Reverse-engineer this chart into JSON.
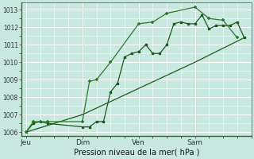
{
  "background_color": "#c8e8e0",
  "grid_color": "#ffffff",
  "line_color_dark": "#1a5c1a",
  "line_color_med": "#2a7a2a",
  "xlabel": "Pression niveau de la mer( hPa )",
  "ylim": [
    1005.8,
    1013.4
  ],
  "yticks": [
    1006,
    1007,
    1008,
    1009,
    1010,
    1011,
    1012,
    1013
  ],
  "xtick_labels": [
    "Jeu",
    "Dim",
    "Ven",
    "Sam"
  ],
  "xtick_positions": [
    0,
    24,
    48,
    72
  ],
  "xlim": [
    -2,
    96
  ],
  "vline_positions": [
    0,
    24,
    48,
    72
  ],
  "series1_x": [
    0,
    3,
    6,
    9,
    24,
    27,
    30,
    33,
    36,
    39,
    42,
    45,
    48,
    51,
    54,
    57,
    60,
    63,
    66,
    69,
    72,
    75,
    78,
    81,
    84,
    87,
    90,
    93
  ],
  "series1_y": [
    1006.0,
    1006.5,
    1006.6,
    1006.5,
    1006.3,
    1006.3,
    1006.6,
    1006.6,
    1008.3,
    1008.8,
    1010.3,
    1010.5,
    1010.6,
    1011.0,
    1010.5,
    1010.5,
    1011.0,
    1012.2,
    1012.3,
    1012.2,
    1012.2,
    1012.7,
    1011.9,
    1012.1,
    1012.1,
    1012.1,
    1012.3,
    1011.4
  ],
  "series2_x": [
    0,
    3,
    6,
    9,
    24,
    27,
    30,
    36,
    48,
    54,
    60,
    72,
    78,
    84,
    90
  ],
  "series2_y": [
    1006.0,
    1006.6,
    1006.6,
    1006.6,
    1006.6,
    1008.9,
    1009.0,
    1010.0,
    1012.2,
    1012.3,
    1012.8,
    1013.15,
    1012.5,
    1012.4,
    1011.4
  ],
  "series3_x": [
    0,
    24,
    48,
    72,
    93
  ],
  "series3_y": [
    1006.0,
    1007.0,
    1008.5,
    1010.0,
    1011.4
  ]
}
